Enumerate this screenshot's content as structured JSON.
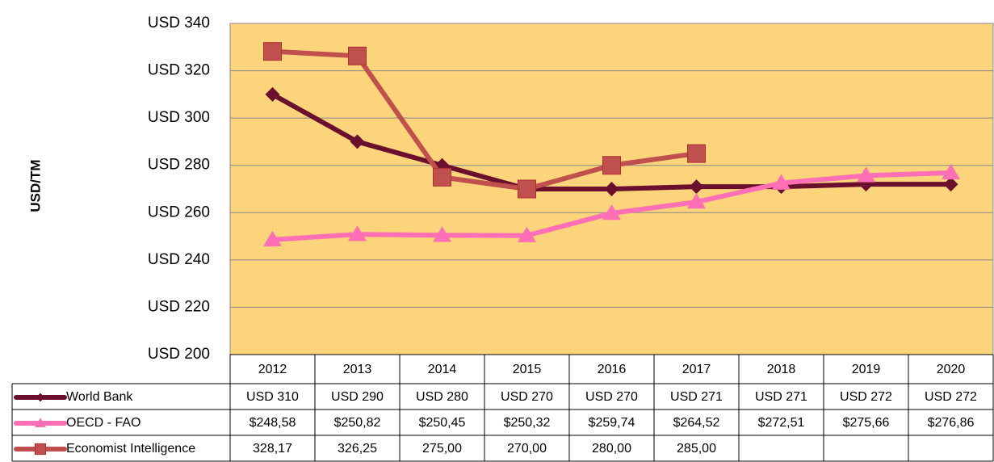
{
  "chart_data": {
    "type": "line",
    "y_label": "USD/TM",
    "categories": [
      "2012",
      "2013",
      "2014",
      "2015",
      "2016",
      "2017",
      "2018",
      "2019",
      "2020"
    ],
    "series": [
      {
        "name": "World Bank",
        "color": "#6b0f2e",
        "marker": "diamond",
        "values": [
          310,
          290,
          280,
          270,
          270,
          271,
          271,
          272,
          272
        ],
        "value_labels": [
          "USD 310",
          "USD 290",
          "USD 280",
          "USD 270",
          "USD 270",
          "USD 271",
          "USD 271",
          "USD 272",
          "USD 272"
        ]
      },
      {
        "name": "OECD - FAO",
        "color": "#ff6fb5",
        "marker": "triangle",
        "values": [
          248.58,
          250.82,
          250.45,
          250.32,
          259.74,
          264.52,
          272.51,
          275.66,
          276.86
        ],
        "value_labels": [
          "$248,58",
          "$250,82",
          "$250,45",
          "$250,32",
          "$259,74",
          "$264,52",
          "$272,51",
          "$275,66",
          "$276,86"
        ]
      },
      {
        "name": "Economist Intelligence",
        "color": "#c0504d",
        "marker": "square",
        "values": [
          328.17,
          326.25,
          275.0,
          270.0,
          280.0,
          285.0,
          null,
          null,
          null
        ],
        "value_labels": [
          "328,17",
          "326,25",
          "275,00",
          "270,00",
          "280,00",
          "285,00",
          null,
          null,
          null
        ]
      }
    ],
    "ylim": [
      200,
      340
    ],
    "yticks": [
      {
        "value": 200,
        "label": "USD 200"
      },
      {
        "value": 220,
        "label": "USD 220"
      },
      {
        "value": 240,
        "label": "USD 240"
      },
      {
        "value": 260,
        "label": "USD 260"
      },
      {
        "value": 280,
        "label": "USD 280"
      },
      {
        "value": 300,
        "label": "USD 300"
      },
      {
        "value": 320,
        "label": "USD 320"
      },
      {
        "value": 340,
        "label": "USD 340"
      }
    ],
    "grid": true,
    "plot_background": "#fcd47c"
  }
}
